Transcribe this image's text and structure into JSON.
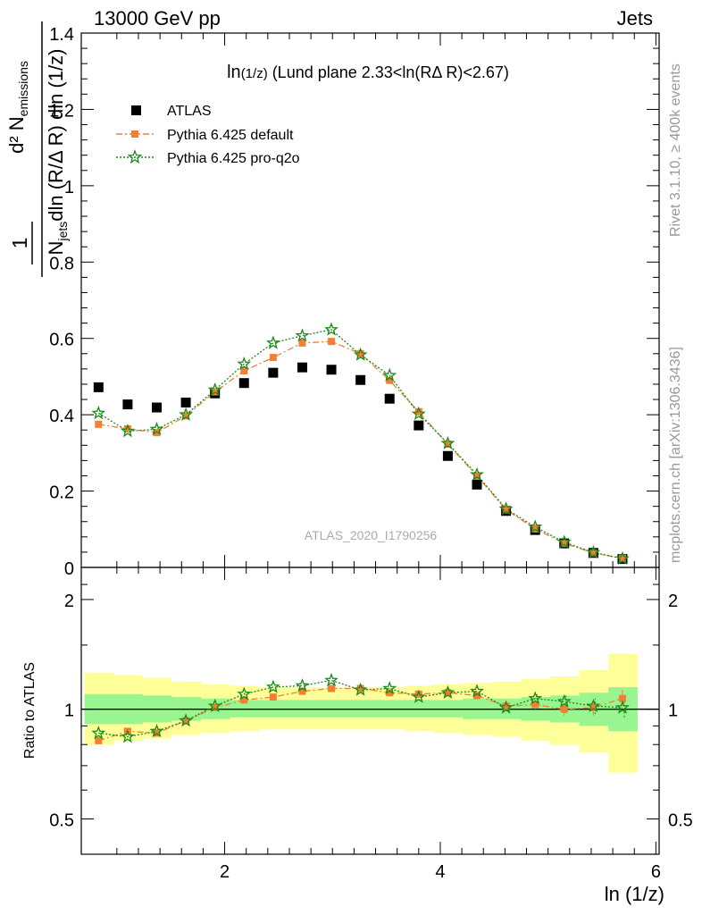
{
  "header": {
    "left": "13000 GeV pp",
    "right": "Jets"
  },
  "side_labels": {
    "rivet": "Rivet 3.1.10, ≥ 400k events",
    "mcplots": "mcplots.cern.ch [arXiv:1306.3436]"
  },
  "colors": {
    "atlas": "#000000",
    "default": "#f47f33",
    "proq2o": "#1a8a1a",
    "band_inner": "#99f58f",
    "band_outer": "#ffff99"
  },
  "chart_data": [
    {
      "type": "scatter",
      "title": "ln(1/z) (Lund plane 2.33<ln(RΔ R)<2.67)",
      "title_main": "ln",
      "title_small": "(1/z)",
      "title_rest": " (Lund plane 2.33<ln(RΔ R)<2.67)",
      "xlabel": "ln (1/z)",
      "ylabel": "d² N_emissions / N_jets dln (R/Δ R) dln (1/z)",
      "xlim": [
        0.67,
        6.03
      ],
      "ylim": [
        0,
        1.4
      ],
      "yticks": [
        0,
        0.2,
        0.4,
        0.6,
        0.8,
        1,
        1.2,
        1.4
      ],
      "ytick_labels": [
        "0",
        "0.2",
        "0.4",
        "0.6",
        "0.8",
        "1",
        "1.2",
        "1.4"
      ],
      "watermark": "ATLAS_2020_I1790256",
      "legend": [
        {
          "label": "ATLAS",
          "marker": "square"
        },
        {
          "label": "Pythia 6.425 default",
          "marker": "circle"
        },
        {
          "label": "Pythia 6.425 pro-q2o",
          "marker": "star"
        }
      ],
      "legend_position": "top-left",
      "x": [
        0.83,
        1.1,
        1.37,
        1.64,
        1.91,
        2.18,
        2.45,
        2.72,
        2.99,
        3.26,
        3.53,
        3.8,
        4.07,
        4.34,
        4.61,
        4.88,
        5.15,
        5.42,
        5.69
      ],
      "series": [
        {
          "name": "ATLAS",
          "values": [
            0.472,
            0.427,
            0.419,
            0.432,
            0.456,
            0.483,
            0.51,
            0.524,
            0.518,
            0.491,
            0.442,
            0.372,
            0.292,
            0.217,
            0.148,
            0.098,
            0.063,
            0.038,
            0.022
          ]
        },
        {
          "name": "Pythia 6.425 default",
          "values": [
            0.375,
            0.363,
            0.353,
            0.397,
            0.46,
            0.515,
            0.55,
            0.588,
            0.592,
            0.56,
            0.49,
            0.408,
            0.323,
            0.24,
            0.151,
            0.101,
            0.063,
            0.038,
            0.024
          ]
        },
        {
          "name": "Pythia 6.425 pro-q2o",
          "values": [
            0.404,
            0.357,
            0.362,
            0.4,
            0.465,
            0.533,
            0.588,
            0.607,
            0.623,
            0.557,
            0.503,
            0.402,
            0.325,
            0.243,
            0.153,
            0.106,
            0.066,
            0.039,
            0.023
          ]
        }
      ]
    },
    {
      "type": "line",
      "xlabel": "ln (1/z)",
      "ylabel": "Ratio to ATLAS",
      "log_scale_y": true,
      "xlim": [
        0.67,
        6.03
      ],
      "ylim": [
        0.4,
        2.45
      ],
      "xticks": [
        2,
        4,
        6
      ],
      "xtick_labels": [
        "2",
        "4",
        "6"
      ],
      "yticks": [
        0.5,
        1,
        2
      ],
      "ytick_labels": [
        "0.5",
        "1",
        "2"
      ],
      "x_edges": [
        0.7,
        0.97,
        1.24,
        1.51,
        1.78,
        2.05,
        2.32,
        2.59,
        2.86,
        3.13,
        3.4,
        3.67,
        3.94,
        4.21,
        4.48,
        4.75,
        5.02,
        5.29,
        5.56,
        5.83
      ],
      "band_inner": {
        "lower": [
          0.91,
          0.91,
          0.92,
          0.93,
          0.94,
          0.95,
          0.95,
          0.95,
          0.95,
          0.95,
          0.95,
          0.95,
          0.95,
          0.94,
          0.94,
          0.93,
          0.92,
          0.9,
          0.87
        ],
        "upper": [
          1.1,
          1.1,
          1.09,
          1.08,
          1.07,
          1.06,
          1.06,
          1.06,
          1.06,
          1.06,
          1.06,
          1.06,
          1.06,
          1.07,
          1.07,
          1.08,
          1.09,
          1.11,
          1.15
        ]
      },
      "band_outer": {
        "lower": [
          0.8,
          0.82,
          0.83,
          0.85,
          0.86,
          0.87,
          0.88,
          0.88,
          0.88,
          0.88,
          0.88,
          0.87,
          0.86,
          0.85,
          0.84,
          0.82,
          0.8,
          0.76,
          0.67
        ],
        "upper": [
          1.26,
          1.24,
          1.22,
          1.19,
          1.17,
          1.16,
          1.15,
          1.15,
          1.15,
          1.15,
          1.15,
          1.16,
          1.17,
          1.18,
          1.19,
          1.21,
          1.23,
          1.28,
          1.42
        ]
      },
      "x": [
        0.83,
        1.1,
        1.37,
        1.64,
        1.91,
        2.18,
        2.45,
        2.72,
        2.99,
        3.26,
        3.53,
        3.8,
        4.07,
        4.34,
        4.61,
        4.88,
        5.15,
        5.42,
        5.69
      ],
      "series": [
        {
          "name": "Pythia 6.425 default",
          "values": [
            0.82,
            0.87,
            0.86,
            0.93,
            1.01,
            1.06,
            1.08,
            1.12,
            1.14,
            1.14,
            1.11,
            1.1,
            1.11,
            1.09,
            1.02,
            1.03,
            1.0,
            1.01,
            1.07
          ]
        },
        {
          "name": "Pythia 6.425 pro-q2o",
          "values": [
            0.86,
            0.84,
            0.87,
            0.93,
            1.02,
            1.1,
            1.15,
            1.16,
            1.2,
            1.13,
            1.14,
            1.08,
            1.11,
            1.12,
            1.01,
            1.07,
            1.05,
            1.02,
            1.01
          ]
        }
      ],
      "error_bars": {
        "Pythia 6.425 default": [
          0.0,
          0.0,
          0.0,
          0.0,
          0.0,
          0.0,
          0.0,
          0.0,
          0.0,
          0.0,
          0.0,
          0.0,
          0.0,
          0.0,
          0.02,
          0.03,
          0.04,
          0.05,
          0.06
        ],
        "Pythia 6.425 pro-q2o": [
          0.0,
          0.0,
          0.0,
          0.0,
          0.0,
          0.0,
          0.0,
          0.0,
          0.0,
          0.0,
          0.0,
          0.0,
          0.0,
          0.0,
          0.02,
          0.03,
          0.04,
          0.05,
          0.06
        ]
      }
    }
  ]
}
